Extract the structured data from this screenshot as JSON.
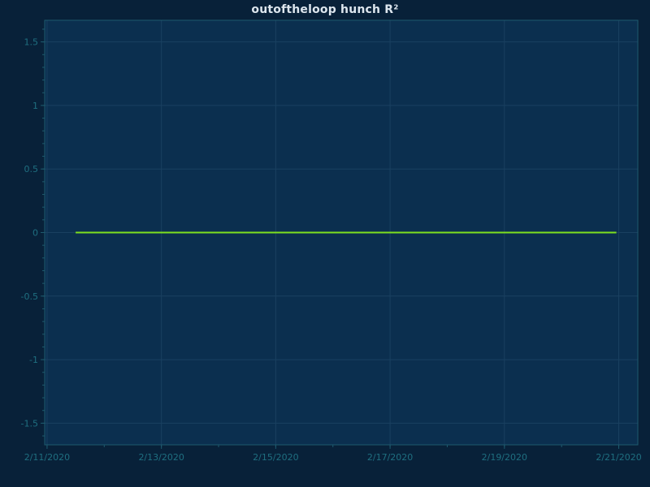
{
  "chart_data": {
    "type": "line",
    "title": "outoftheloop hunch R²",
    "xlabel": "",
    "ylabel": "",
    "x_ticks": [
      "2/11/2020",
      "2/13/2020",
      "2/15/2020",
      "2/17/2020",
      "2/19/2020",
      "2/21/2020"
    ],
    "y_ticks": [
      "1.5",
      "1",
      "0.5",
      "0",
      "-0.5",
      "-1",
      "-1.5"
    ],
    "xlim": [
      "2020-02-10T23:00",
      "2020-02-21T08:00"
    ],
    "ylim": [
      -1.67,
      1.67
    ],
    "grid": true,
    "series": [
      {
        "x": [
          "2020-02-11T12:00",
          "2020-02-12T12:00",
          "2020-02-13T12:00",
          "2020-02-14T12:00",
          "2020-02-15T12:00",
          "2020-02-16T12:00",
          "2020-02-17T12:00",
          "2020-02-18T12:00",
          "2020-02-19T12:00",
          "2020-02-20T12:00",
          "2020-02-20T23:00"
        ],
        "values": [
          0,
          0,
          0,
          0,
          0,
          0,
          0,
          0,
          0,
          0,
          0
        ],
        "color": "#7fe01e"
      }
    ]
  },
  "colors": {
    "background": "#082139",
    "plot_background": "#0b2f4f",
    "grid": "#1a4060",
    "axis": "#1e5a6e",
    "tick_label": "#1f6f80",
    "title": "#dde6ee"
  }
}
